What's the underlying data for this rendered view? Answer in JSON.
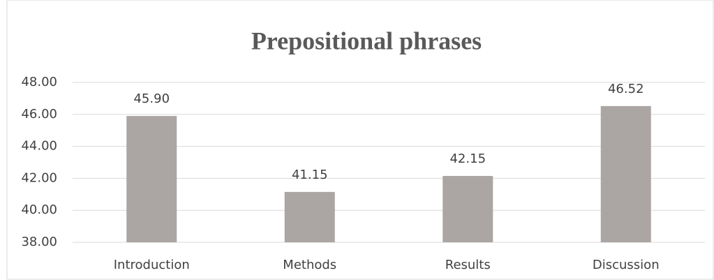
{
  "chart_data": {
    "type": "bar",
    "title": "Prepositional phrases",
    "categories": [
      "Introduction",
      "Methods",
      "Results",
      "Discussion"
    ],
    "values": [
      45.9,
      41.15,
      42.15,
      46.52
    ],
    "value_labels": [
      "45.90",
      "41.15",
      "42.15",
      "46.52"
    ],
    "color": "#aba6a3",
    "ylim": [
      38,
      48
    ],
    "yticks": [
      {
        "value": 38,
        "label": "38.00"
      },
      {
        "value": 40,
        "label": "40.00"
      },
      {
        "value": 42,
        "label": "42.00"
      },
      {
        "value": 44,
        "label": "44.00"
      },
      {
        "value": 46,
        "label": "46.00"
      },
      {
        "value": 48,
        "label": "48.00"
      }
    ],
    "grid": true
  }
}
